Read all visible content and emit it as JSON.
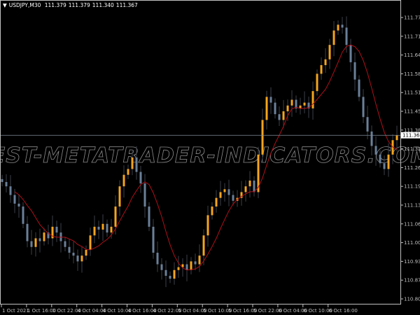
{
  "header": {
    "symbol": "USDJPY,M30",
    "open": "111.379",
    "high": "111.379",
    "low": "111.340",
    "close": "111.367"
  },
  "watermark": "BEST-METATRADER-INDICATORS.COM",
  "colors": {
    "background": "#000000",
    "bull": "#f5a51c",
    "bear": "#6a7f99",
    "wick": "#3a3f47",
    "ma": "#b0101a",
    "bid_line": "#7f8c99",
    "axis": "#c0c0c0"
  },
  "chart_data": {
    "type": "candlestick",
    "title": "USDJPY,M30",
    "ylim": [
      110.78,
      111.82
    ],
    "y_ticks": [
      "111.775",
      "111.710",
      "111.645",
      "111.580",
      "111.515",
      "111.450",
      "111.385",
      "111.320",
      "111.260",
      "111.195",
      "111.130",
      "111.065",
      "111.000",
      "110.935",
      "110.870",
      "110.805"
    ],
    "x_ticks": [
      "1 Oct 2021",
      "1 Oct 16:00",
      "1 Oct 22:00",
      "4 Oct 04:00",
      "4 Oct 10:00",
      "4 Oct 16:00",
      "4 Oct 22:00",
      "5 Oct 04:00",
      "5 Oct 10:00",
      "5 Oct 16:00",
      "5 Oct 22:00",
      "6 Oct 04:00",
      "6 Oct 10:00",
      "6 Oct 16:00"
    ],
    "current_price": "111.367",
    "closes": [
      111.205,
      111.19,
      111.16,
      111.13,
      111.12,
      111.06,
      111.0,
      110.98,
      111.01,
      111.0,
      111.03,
      111.01,
      111.05,
      111.03,
      111.0,
      110.98,
      110.96,
      110.95,
      110.93,
      110.95,
      110.97,
      111.02,
      111.05,
      111.04,
      111.06,
      111.03,
      111.05,
      111.12,
      111.19,
      111.23,
      111.25,
      111.29,
      111.24,
      111.2,
      111.12,
      111.05,
      110.96,
      110.92,
      110.9,
      110.88,
      110.87,
      110.9,
      110.91,
      110.92,
      110.9,
      110.93,
      110.92,
      110.95,
      111.02,
      111.09,
      111.12,
      111.15,
      111.17,
      111.18,
      111.16,
      111.14,
      111.15,
      111.17,
      111.19,
      111.21,
      111.17,
      111.3,
      111.42,
      111.5,
      111.48,
      111.44,
      111.42,
      111.45,
      111.47,
      111.49,
      111.46,
      111.47,
      111.48,
      111.46,
      111.52,
      111.58,
      111.61,
      111.63,
      111.68,
      111.73,
      111.75,
      111.74,
      111.68,
      111.62,
      111.56,
      111.5,
      111.43,
      111.38,
      111.33,
      111.3,
      111.27,
      111.25,
      111.3,
      111.35,
      111.367
    ]
  }
}
